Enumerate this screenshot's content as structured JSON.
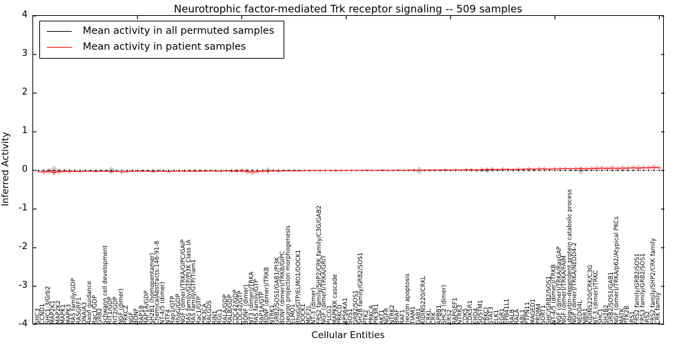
{
  "title": "Neurotrophic factor-mediated Trk receptor signaling -- 509 samples",
  "legend": {
    "items": [
      {
        "label": "Mean activity in all permuted samples",
        "color": "#000000"
      },
      {
        "label": "Mean activity in patient samples",
        "color": "#ff0000"
      }
    ]
  },
  "axes": {
    "ylabel": "Inferred Activity",
    "xlabel": "Cellular Entities",
    "yticks": [
      "4",
      "3",
      "2",
      "1",
      "0",
      "-1",
      "-2",
      "-3",
      "-4"
    ]
  },
  "colors": {
    "permuted_line": "#000000",
    "patient_line": "#ff0000",
    "patient_marker": "rgba(255,0,0,0.25)",
    "permuted_marker": "rgba(120,120,120,0.35)"
  },
  "chart_data": {
    "type": "line",
    "title": "Neurotrophic factor-mediated Trk receptor signaling -- 509 samples",
    "xlabel": "Cellular Entities",
    "ylabel": "Inferred Activity",
    "ylim": [
      -4,
      4
    ],
    "grid": false,
    "legend_position": "upper left",
    "categories": [
      "SHC3",
      "CCND1",
      "SHC1-3/Grb2",
      "MAP2K1",
      "MAP2K2",
      "MAPK1",
      "MAPK3",
      "RAS family/GDP",
      "RASGRF1",
      "DNAJA3",
      "Axon guidance",
      "Rac1/GDP",
      "GRB2",
      "Schwann cell development",
      "RIT1/GDP",
      "RIT2/GDP",
      "NGF (dimer)",
      "PRKCZ",
      "NGF",
      "BDNF",
      "RAP1B",
      "RAP1A/GDP",
      "SH2B1 (homopentamer)",
      "ChemicalAbstracts:146-91-8",
      "NT-4/5 (dimer)",
      "NTF4",
      "Rap1/GTP",
      "RhoG/GDP",
      "NGF (dimer)/TRKA/GIPC/GAIP",
      "RAS family/GTP/PI3K Class IA",
      "RAS family/GTP/Tiam1",
      "Rac1/GTP",
      "PIK3CA",
      "RALGDS",
      "RIN1",
      "RGL1",
      "RALA/GDP",
      "RALB/GDP",
      "CDC42/GDP",
      "CDC42/GTP",
      "BDNF (dimer)",
      "NT3 (dimer)/TRKA",
      "RAS family/GTP",
      "RAP1A/GTP",
      "BDNF (dimer)/TRKB",
      "NTRK1",
      "GRB2/SOS1/GAB1/PI3K",
      "BDNF (dimer)/TRKB/GIPC",
      "neuron projection morphogenesis",
      "ELMO1",
      "RhoG/GTP/ELMO1/DOCK1",
      "DOCK1",
      "MCF2L",
      "NT-3 (dimer)",
      "FRS2 family/SHP2/CRK family/C3G/GAB2",
      "NGF (dimer)/TRKA/GRIT",
      "PLCG1",
      "MAPKKK cascade",
      "PRKCD",
      "RPS6KA1",
      "SOS1",
      "GRB2/SOS1",
      "SH2B family/GRB2/SOS1",
      "PTK2",
      "PRKCA",
      "PIK3R1",
      "AKT1",
      "NGFR",
      "NTRK2",
      "BRAF",
      "RAF1",
      "neuron apoptosis",
      "TIAM1",
      "GAB1",
      "KIDINS220/CRKL",
      "CRKL",
      "CRK",
      "APBB1",
      "SHC2 (dimer)",
      "FRS2",
      "RAPGEF1",
      "NTRK3",
      "CDK5",
      "CDK5R1",
      "EHD4",
      "SQSTM1",
      "PRKCI",
      "STAT3",
      "ELK1",
      "EGR1",
      "EPB41L1",
      "RALB",
      "RALA",
      "ABL1",
      "PTPN11",
      "MAGED1",
      "PRDM4",
      "SORT1",
      "SHC/GRB2/SOS1",
      "NT-4/5 (dimer)/TRKB",
      "NGF (dimer)/TRKA/RasGAP",
      "NGF (dimer)/TRKA/FAIM",
      "ubiquitin-dependent protein catabolic process",
      "NGF (dimer)/TRKA/NEDD4-2",
      "NEDD4L",
      "NBR1",
      "KIDINS220/CRK/C3G",
      "NT-3 (dimer)/TRKC",
      "SHC1",
      "SH2B2",
      "GRB2/SOS1/GAB1",
      "NGF (dimer)/TRKA/p62/Atypical PKCs",
      "MATK",
      "PTK2B",
      "IRS1",
      "FRS2 family/GRB2/SOS1",
      "FRS3 family/GRB2/SOS1",
      "IRS2",
      "FRS2 family/SHP2/CRK family",
      "CRK family"
    ],
    "series": [
      {
        "name": "Mean activity in all permuted samples",
        "color": "#000000",
        "constant_value": 0
      },
      {
        "name": "Mean activity in patient samples",
        "color": "#ff0000",
        "values": [
          -0.03,
          -0.04,
          -0.02,
          -0.05,
          -0.03,
          -0.02,
          -0.03,
          -0.02,
          -0.03,
          -0.02,
          -0.02,
          -0.03,
          -0.02,
          -0.02,
          -0.03,
          -0.02,
          -0.04,
          -0.03,
          -0.02,
          -0.02,
          -0.02,
          -0.02,
          -0.03,
          -0.02,
          -0.02,
          -0.03,
          -0.02,
          -0.02,
          -0.02,
          -0.02,
          -0.02,
          -0.02,
          -0.02,
          -0.01,
          -0.02,
          -0.02,
          -0.01,
          -0.02,
          -0.02,
          -0.01,
          -0.03,
          -0.04,
          -0.03,
          -0.02,
          -0.02,
          -0.01,
          -0.02,
          -0.01,
          -0.01,
          -0.01,
          -0.01,
          0,
          -0.01,
          0,
          -0.01,
          0,
          0,
          -0.01,
          0,
          0,
          0,
          0,
          0,
          0.01,
          0,
          0,
          0.01,
          0,
          0,
          0.01,
          0,
          0.01,
          0.01,
          0,
          0.01,
          0.01,
          0.01,
          0.01,
          0.02,
          0.01,
          0.02,
          0.01,
          0.02,
          0.02,
          0.01,
          0.02,
          0.02,
          0.03,
          0.02,
          0.03,
          0.03,
          0.02,
          0.03,
          0.03,
          0.04,
          0.03,
          0.04,
          0.04,
          0.03,
          0.04,
          0.04,
          0.05,
          0.04,
          0.05,
          0.05,
          0.04,
          0.05,
          0.05,
          0.06,
          0.05,
          0.06,
          0.05,
          0.06,
          0.06,
          0.07,
          0.06,
          0.07,
          0.07,
          0.08,
          0.07
        ]
      }
    ],
    "red_marker_sizes": [
      3,
      4,
      5,
      4,
      5,
      4,
      4,
      3,
      3,
      2,
      2,
      2,
      2,
      2,
      3,
      2,
      4,
      3,
      2,
      2,
      2,
      2,
      3,
      2,
      2,
      3,
      2,
      2,
      2,
      2,
      2,
      2,
      2,
      2,
      2,
      2,
      2,
      3,
      4,
      4,
      5,
      5,
      4,
      4,
      3,
      3,
      3,
      2,
      2,
      2,
      2,
      2,
      2,
      2,
      2,
      2,
      2,
      2,
      2,
      2,
      2,
      2,
      2,
      2,
      2,
      2,
      2,
      2,
      2,
      2,
      2,
      2,
      3,
      2,
      2,
      2,
      2,
      2,
      2,
      2,
      2,
      2,
      3,
      3,
      3,
      4,
      3,
      4,
      3,
      4,
      3,
      3,
      4,
      3,
      4,
      3,
      4,
      4,
      3,
      4,
      4,
      3,
      3,
      3,
      3,
      4,
      4,
      5,
      4,
      4,
      5,
      4,
      5,
      4,
      4,
      5,
      4,
      4,
      5,
      4
    ],
    "gray_markers": [
      {
        "index": 3,
        "r": 7
      },
      {
        "index": 14,
        "r": 6
      },
      {
        "index": 44,
        "r": 5
      },
      {
        "index": 73,
        "r": 6
      },
      {
        "index": 86,
        "r": 5
      },
      {
        "index": 104,
        "r": 6
      }
    ],
    "x_tick_interval": 20
  }
}
